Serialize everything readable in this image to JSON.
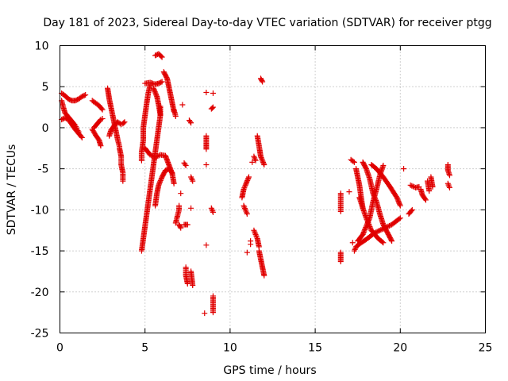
{
  "chart_data": {
    "type": "scatter",
    "title": "Day 181 of 2023, Sidereal Day-to-day VTEC variation (SDTVAR) for receiver ptgg",
    "xlabel": "GPS time / hours",
    "ylabel": "SDTVAR / TECUs",
    "xlim": [
      0,
      25
    ],
    "ylim": [
      -25,
      10
    ],
    "xticks": [
      0,
      5,
      10,
      15,
      20,
      25
    ],
    "yticks": [
      -25,
      -20,
      -15,
      -10,
      -5,
      0,
      5,
      10
    ],
    "grid": true,
    "marker": "+",
    "color": "#e00000",
    "series": [
      {
        "name": "ptgg",
        "tracks": [
          [
            [
              0.1,
              4.2
            ],
            [
              0.3,
              3.9
            ],
            [
              0.5,
              3.5
            ],
            [
              0.7,
              3.3
            ],
            [
              0.9,
              3.3
            ],
            [
              1.1,
              3.5
            ],
            [
              1.3,
              3.8
            ],
            [
              1.5,
              4.0
            ]
          ],
          [
            [
              0.1,
              3.3
            ],
            [
              0.2,
              2.5
            ],
            [
              0.3,
              1.8
            ],
            [
              0.5,
              1.3
            ],
            [
              0.7,
              0.8
            ],
            [
              0.9,
              0.3
            ],
            [
              1.0,
              -0.2
            ],
            [
              1.1,
              -0.5
            ]
          ],
          [
            [
              0.1,
              1.0
            ],
            [
              0.3,
              1.2
            ],
            [
              0.5,
              1.0
            ],
            [
              0.7,
              0.4
            ],
            [
              0.9,
              -0.2
            ],
            [
              1.1,
              -0.7
            ],
            [
              1.3,
              -1.2
            ]
          ],
          [
            [
              1.9,
              -0.2
            ],
            [
              2.1,
              -0.9
            ],
            [
              2.3,
              -1.5
            ],
            [
              2.4,
              -2.2
            ]
          ],
          [
            [
              1.9,
              3.3
            ],
            [
              2.1,
              3.0
            ],
            [
              2.3,
              2.7
            ],
            [
              2.5,
              2.2
            ]
          ],
          [
            [
              2.0,
              0.0
            ],
            [
              2.2,
              0.5
            ],
            [
              2.4,
              1.0
            ],
            [
              2.5,
              1.1
            ]
          ],
          [
            [
              2.8,
              4.8
            ],
            [
              2.9,
              3.5
            ],
            [
              3.0,
              2.5
            ],
            [
              3.1,
              1.5
            ],
            [
              3.2,
              0.5
            ],
            [
              3.3,
              -0.5
            ],
            [
              3.4,
              -1.5
            ],
            [
              3.5,
              -2.3
            ]
          ],
          [
            [
              2.9,
              -1.0
            ],
            [
              3.0,
              -0.3
            ],
            [
              3.2,
              0.3
            ],
            [
              3.4,
              0.7
            ],
            [
              3.6,
              0.4
            ]
          ],
          [
            [
              3.5,
              -2.5
            ],
            [
              3.6,
              -3.5
            ],
            [
              3.6,
              -4.5
            ],
            [
              3.7,
              -5.5
            ],
            [
              3.7,
              -6.5
            ]
          ],
          [
            [
              3.7,
              0.5
            ],
            [
              3.8,
              0.7
            ]
          ],
          [
            [
              4.8,
              -15.0
            ],
            [
              4.9,
              -13.5
            ],
            [
              5.0,
              -12.0
            ],
            [
              5.1,
              -10.5
            ],
            [
              5.2,
              -9.0
            ],
            [
              5.3,
              -7.5
            ],
            [
              5.4,
              -6.0
            ],
            [
              5.5,
              -4.5
            ],
            [
              5.6,
              -3.0
            ],
            [
              5.7,
              -1.5
            ],
            [
              5.8,
              0.0
            ],
            [
              5.9,
              1.5
            ],
            [
              5.9,
              2.6
            ]
          ],
          [
            [
              4.8,
              -4.0
            ],
            [
              4.8,
              -3.0
            ],
            [
              4.9,
              -1.5
            ],
            [
              4.9,
              0.0
            ],
            [
              5.0,
              1.5
            ],
            [
              5.1,
              3.0
            ],
            [
              5.2,
              4.3
            ],
            [
              5.3,
              5.2
            ]
          ],
          [
            [
              5.0,
              5.4
            ],
            [
              5.3,
              5.5
            ],
            [
              5.6,
              5.3
            ],
            [
              5.8,
              5.4
            ],
            [
              6.0,
              5.6
            ]
          ],
          [
            [
              5.6,
              -9.5
            ],
            [
              5.7,
              -8.0
            ],
            [
              5.8,
              -7.0
            ],
            [
              6.0,
              -6.0
            ],
            [
              6.2,
              -5.2
            ],
            [
              6.4,
              -5.0
            ],
            [
              6.6,
              -5.5
            ]
          ],
          [
            [
              5.0,
              -2.5
            ],
            [
              5.3,
              -3.3
            ],
            [
              5.6,
              -3.6
            ],
            [
              5.9,
              -3.3
            ],
            [
              6.2,
              -3.4
            ],
            [
              6.4,
              -4.5
            ],
            [
              6.6,
              -5.6
            ],
            [
              6.7,
              -6.8
            ]
          ],
          [
            [
              5.5,
              4.8
            ],
            [
              5.7,
              3.8
            ],
            [
              5.8,
              2.8
            ],
            [
              5.9,
              1.6
            ]
          ],
          [
            [
              5.6,
              8.8
            ],
            [
              5.8,
              9.0
            ],
            [
              6.0,
              8.6
            ]
          ],
          [
            [
              6.1,
              6.8
            ],
            [
              6.3,
              6.0
            ],
            [
              6.4,
              5.0
            ],
            [
              6.5,
              4.0
            ],
            [
              6.6,
              3.0
            ],
            [
              6.7,
              2.0
            ]
          ],
          [
            [
              6.7,
              2.2
            ],
            [
              6.8,
              1.4
            ]
          ],
          [
            [
              6.8,
              -11.6
            ],
            [
              6.9,
              -10.8
            ],
            [
              7.0,
              -10.0
            ],
            [
              7.0,
              -9.5
            ]
          ],
          [
            [
              7.0,
              -11.8
            ],
            [
              7.1,
              -12.2
            ]
          ],
          [
            [
              7.1,
              -8.0
            ]
          ],
          [
            [
              7.3,
              -4.3
            ],
            [
              7.4,
              -4.6
            ]
          ],
          [
            [
              7.3,
              -11.8
            ],
            [
              7.5,
              -11.8
            ]
          ],
          [
            [
              7.4,
              -17.0
            ],
            [
              7.4,
              -18.0
            ],
            [
              7.5,
              -19.0
            ]
          ],
          [
            [
              7.7,
              -17.5
            ],
            [
              7.8,
              -19.2
            ]
          ],
          [
            [
              7.6,
              0.9
            ],
            [
              7.7,
              0.6
            ]
          ],
          [
            [
              7.7,
              -6.0
            ],
            [
              7.8,
              -6.5
            ]
          ],
          [
            [
              7.7,
              -9.8
            ]
          ],
          [
            [
              7.2,
              2.8
            ]
          ],
          [
            [
              8.6,
              -1.0
            ],
            [
              8.6,
              -1.9
            ],
            [
              8.6,
              -2.6
            ]
          ],
          [
            [
              8.6,
              -4.5
            ]
          ],
          [
            [
              8.6,
              4.3
            ]
          ],
          [
            [
              8.6,
              -14.3
            ]
          ],
          [
            [
              8.5,
              -22.6
            ]
          ],
          [
            [
              9.0,
              -20.5
            ],
            [
              9.0,
              -21.5
            ],
            [
              9.0,
              -22.5
            ]
          ],
          [
            [
              8.9,
              -9.8
            ],
            [
              9.0,
              -10.3
            ]
          ],
          [
            [
              8.9,
              2.3
            ],
            [
              9.0,
              2.5
            ]
          ],
          [
            [
              9.0,
              4.2
            ]
          ],
          [
            [
              10.7,
              -8.5
            ],
            [
              10.8,
              -7.5
            ],
            [
              10.9,
              -7.0
            ],
            [
              11.1,
              -6.0
            ]
          ],
          [
            [
              10.8,
              -9.5
            ],
            [
              10.9,
              -10.0
            ],
            [
              11.0,
              -10.5
            ]
          ],
          [
            [
              11.0,
              -15.2
            ]
          ],
          [
            [
              11.2,
              -13.8
            ]
          ],
          [
            [
              11.2,
              -14.2
            ]
          ],
          [
            [
              11.3,
              -4.2
            ]
          ],
          [
            [
              11.4,
              -3.5
            ],
            [
              11.5,
              -4.0
            ]
          ],
          [
            [
              11.4,
              -12.5
            ],
            [
              11.5,
              -13.0
            ],
            [
              11.6,
              -13.5
            ],
            [
              11.7,
              -14.5
            ]
          ],
          [
            [
              11.7,
              -15.0
            ],
            [
              11.8,
              -16.0
            ],
            [
              11.9,
              -17.0
            ],
            [
              12.0,
              -18.0
            ]
          ],
          [
            [
              11.6,
              -1.0
            ],
            [
              11.7,
              -2.2
            ],
            [
              11.8,
              -3.5
            ],
            [
              12.0,
              -4.5
            ]
          ],
          [
            [
              11.8,
              6.0
            ],
            [
              11.9,
              5.6
            ]
          ],
          [
            [
              16.5,
              -8.0
            ],
            [
              16.5,
              -10.2
            ]
          ],
          [
            [
              16.5,
              -15.2
            ],
            [
              16.5,
              -16.3
            ]
          ],
          [
            [
              17.0,
              -7.8
            ]
          ],
          [
            [
              17.2,
              -14.0
            ]
          ],
          [
            [
              17.3,
              -15.0
            ],
            [
              17.4,
              -14.5
            ],
            [
              17.7,
              -14.0
            ],
            [
              18.0,
              -13.6
            ],
            [
              18.5,
              -12.8
            ],
            [
              19.0,
              -12.3
            ],
            [
              19.5,
              -11.8
            ],
            [
              20.0,
              -11.0
            ]
          ],
          [
            [
              17.5,
              -13.8
            ],
            [
              17.8,
              -13.0
            ],
            [
              18.0,
              -12.0
            ],
            [
              18.2,
              -11.0
            ],
            [
              18.4,
              -9.0
            ],
            [
              18.6,
              -7.5
            ],
            [
              18.8,
              -5.8
            ],
            [
              19.0,
              -4.6
            ]
          ],
          [
            [
              17.4,
              -5.0
            ],
            [
              17.5,
              -6.0
            ],
            [
              17.6,
              -7.0
            ],
            [
              17.7,
              -8.5
            ],
            [
              17.8,
              -9.8
            ],
            [
              18.0,
              -11.0
            ],
            [
              18.3,
              -12.5
            ],
            [
              18.7,
              -13.5
            ],
            [
              19.0,
              -14.0
            ]
          ],
          [
            [
              17.8,
              -4.2
            ],
            [
              18.0,
              -5.0
            ],
            [
              18.2,
              -6.2
            ],
            [
              18.4,
              -8.0
            ],
            [
              18.6,
              -9.0
            ],
            [
              18.8,
              -10.5
            ],
            [
              19.0,
              -11.8
            ],
            [
              19.3,
              -13.0
            ],
            [
              19.5,
              -13.8
            ]
          ],
          [
            [
              17.1,
              -3.9
            ],
            [
              17.3,
              -4.2
            ]
          ],
          [
            [
              18.3,
              -4.5
            ],
            [
              18.6,
              -5.0
            ],
            [
              19.0,
              -6.0
            ],
            [
              19.4,
              -7.2
            ],
            [
              19.8,
              -8.5
            ],
            [
              20.0,
              -9.5
            ]
          ],
          [
            [
              17.6,
              -8.5
            ],
            [
              17.8,
              -9.8
            ]
          ],
          [
            [
              20.2,
              -5.0
            ]
          ],
          [
            [
              20.5,
              -10.5
            ],
            [
              20.7,
              -10.0
            ]
          ],
          [
            [
              20.6,
              -7.0
            ],
            [
              20.9,
              -7.3
            ],
            [
              21.1,
              -7.2
            ]
          ],
          [
            [
              21.2,
              -7.5
            ],
            [
              21.3,
              -8.2
            ],
            [
              21.5,
              -8.8
            ]
          ],
          [
            [
              21.6,
              -6.5
            ],
            [
              21.7,
              -7.7
            ]
          ],
          [
            [
              21.8,
              -6.0
            ],
            [
              21.9,
              -7.2
            ]
          ],
          [
            [
              22.8,
              -4.5
            ],
            [
              22.8,
              -5.2
            ],
            [
              22.9,
              -5.8
            ]
          ],
          [
            [
              22.8,
              -6.8
            ],
            [
              22.9,
              -7.3
            ]
          ]
        ]
      }
    ]
  }
}
